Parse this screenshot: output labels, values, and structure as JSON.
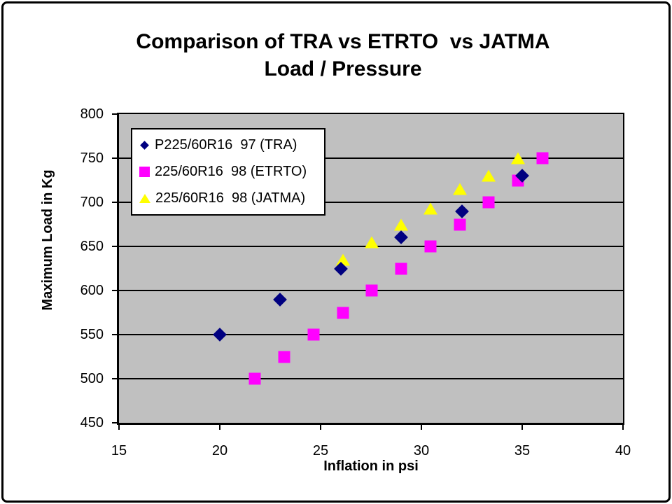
{
  "chart_data": {
    "type": "scatter",
    "title_line1": "Comparison of TRA vs ETRTO  vs JATMA",
    "title_line2": "Load / Pressure",
    "xlabel": "Inflation in psi",
    "ylabel": "Maximum Load in Kg",
    "xlim": [
      15,
      40
    ],
    "ylim": [
      450,
      800
    ],
    "x_ticks": [
      15,
      20,
      25,
      30,
      35,
      40
    ],
    "y_ticks": [
      800,
      750,
      700,
      650,
      600,
      550,
      500,
      450
    ],
    "grid": "horizontal-only",
    "plot_bg_color": "#C0C0C0",
    "gridline_color": "#000000",
    "legend_position": "top-left-inside",
    "series": [
      {
        "name": "P225/60R16  97 (TRA)",
        "marker": "diamond",
        "color": "#000080",
        "points": [
          [
            20,
            550
          ],
          [
            23,
            590
          ],
          [
            26,
            625
          ],
          [
            29,
            660
          ],
          [
            32,
            690
          ],
          [
            35,
            730
          ]
        ]
      },
      {
        "name": "225/60R16  98 (ETRTO)",
        "marker": "square",
        "color": "#FF00FF",
        "points": [
          [
            21.75,
            500
          ],
          [
            23.2,
            525
          ],
          [
            24.65,
            550
          ],
          [
            26.1,
            575
          ],
          [
            27.55,
            600
          ],
          [
            29,
            625
          ],
          [
            30.45,
            650
          ],
          [
            31.9,
            675
          ],
          [
            33.35,
            700
          ],
          [
            34.8,
            725
          ],
          [
            36,
            750
          ]
        ]
      },
      {
        "name": "225/60R16  98 (JATMA)",
        "marker": "triangle",
        "color": "#FFFF00",
        "points": [
          [
            26.1,
            635
          ],
          [
            27.55,
            655
          ],
          [
            29,
            675
          ],
          [
            30.45,
            693
          ],
          [
            31.9,
            715
          ],
          [
            33.35,
            730
          ],
          [
            34.8,
            750
          ]
        ]
      }
    ]
  }
}
